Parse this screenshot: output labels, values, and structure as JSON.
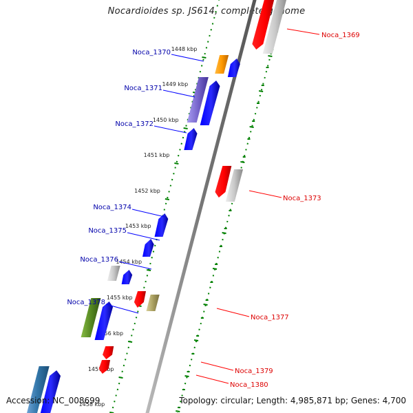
{
  "title": "Nocardioides sp. JS614, complete genome",
  "footer": {
    "accession": "Accession: NC_008699",
    "info": "Topology: circular; Length: 4,985,871 bp; Genes: 4,700"
  },
  "colors": {
    "strand_forward": "#0000ff",
    "strand_reverse": "#ff0000",
    "label_forward": "#0000aa",
    "label_reverse": "#dd0000",
    "tick": "#008000",
    "backbone": "#808080",
    "orange": "#ff9900",
    "purple": "#7766cc",
    "gray": "#bbbbbb",
    "olive": "#aaa060",
    "green": "#558822",
    "steelblue": "#3377aa"
  },
  "ticks": [
    {
      "label": "1448 kbp"
    },
    {
      "label": "1449 kbp"
    },
    {
      "label": "1450 kbp"
    },
    {
      "label": "1451 kbp"
    },
    {
      "label": "1452 kbp"
    },
    {
      "label": "1453 kbp"
    },
    {
      "label": "1454 kbp"
    },
    {
      "label": "1455 kbp"
    },
    {
      "label": "1456 kbp"
    },
    {
      "label": "1457 kbp"
    },
    {
      "label": "1458 kbp"
    }
  ],
  "gene_labels": [
    {
      "name": "Noca_1369",
      "strand": "reverse"
    },
    {
      "name": "Noca_1370",
      "strand": "forward"
    },
    {
      "name": "Noca_1371",
      "strand": "forward"
    },
    {
      "name": "Noca_1372",
      "strand": "forward"
    },
    {
      "name": "Noca_1373",
      "strand": "reverse"
    },
    {
      "name": "Noca_1374",
      "strand": "forward"
    },
    {
      "name": "Noca_1375",
      "strand": "forward"
    },
    {
      "name": "Noca_1376",
      "strand": "forward"
    },
    {
      "name": "Noca_1377",
      "strand": "reverse"
    },
    {
      "name": "Noca_1378",
      "strand": "forward"
    },
    {
      "name": "Noca_1379",
      "strand": "reverse"
    },
    {
      "name": "Noca_1380",
      "strand": "reverse"
    }
  ]
}
